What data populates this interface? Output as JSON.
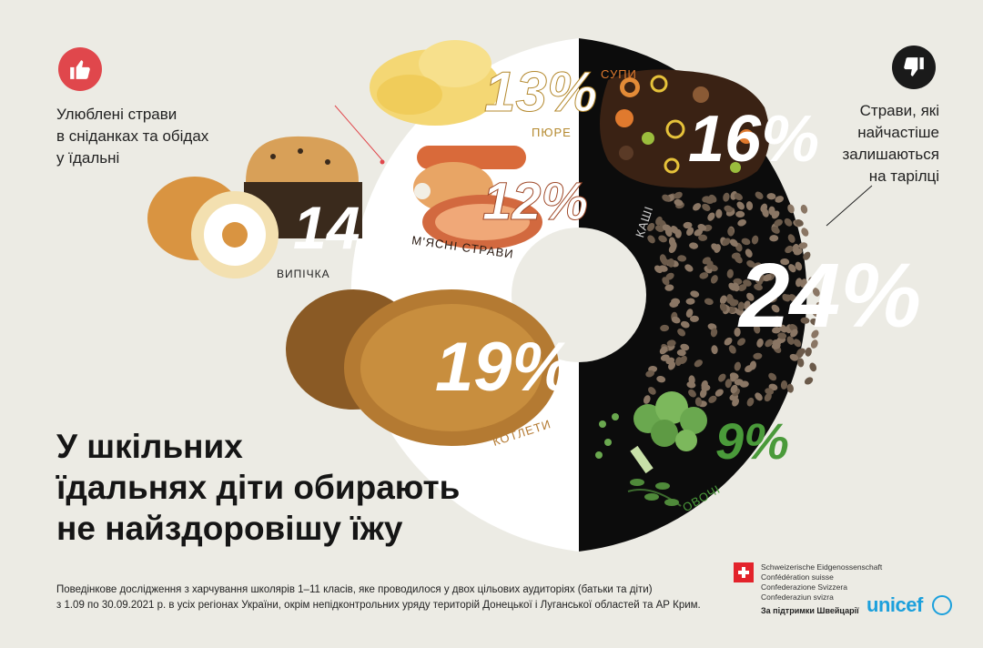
{
  "left_caption": {
    "lines": [
      "Улюблені страви",
      "в сніданках та обідах",
      "у їдальні"
    ]
  },
  "right_caption": {
    "lines": [
      "Страви, які",
      "найчастіше",
      "залишаються",
      "на тарілці"
    ]
  },
  "headline": {
    "lines": [
      "У шкільних",
      "їдальнях діти обирають",
      "не найздоровішу їжу"
    ]
  },
  "favorites": [
    {
      "label": "ПЮРЕ",
      "percent": "13%",
      "value": 13
    },
    {
      "label": "М'ЯСНІ СТРАВИ",
      "percent": "12%",
      "value": 12
    },
    {
      "label": "ВИПІЧКА",
      "percent": "14%",
      "value": 14
    },
    {
      "label": "КОТЛЕТИ",
      "percent": "19%",
      "value": 19
    }
  ],
  "leftovers": [
    {
      "label": "СУПИ",
      "percent": "16%",
      "value": 16
    },
    {
      "label": "КАШІ",
      "percent": "24%",
      "value": 24
    },
    {
      "label": "ОВОЧІ",
      "percent": "9%",
      "value": 9
    }
  ],
  "footer": {
    "lines": [
      "Поведінкове дослідження з харчування школярів 1–11 класів, яке проводилося у двох цільових аудиторіях (батьки та діти)",
      "з 1.09 по 30.09.2021 р. в усіх регіонах України, окрім непідконтрольних уряду територій Донецької і Луганської областей та АР Крим."
    ]
  },
  "swiss": {
    "lines": [
      "Schweizerische Eidgenossenschaft",
      "Confédération suisse",
      "Confederazione Svizzera",
      "Confederaziun svizra"
    ],
    "support": "За підтримки Швейцарії"
  },
  "unicef": {
    "wordmark": "unicef"
  },
  "icons": {
    "like": "thumbs-up-icon",
    "dislike": "thumbs-down-icon"
  },
  "colors": {
    "background": "#ecebe4",
    "accent_red": "#e0474c",
    "dark": "#111111",
    "white_half": "#ffffff",
    "label_orange": "#e07a2e",
    "label_green": "#4a9a3a"
  }
}
